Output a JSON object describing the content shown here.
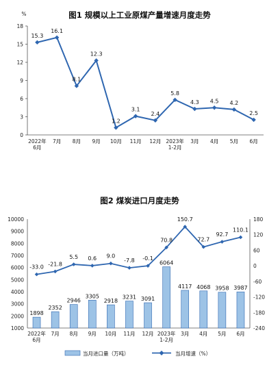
{
  "charts": [
    {
      "title": "图1  规模以上工业原煤产量增速月度走势",
      "unit_label": "%",
      "categories": [
        [
          "2022年",
          "6月"
        ],
        [
          "7月"
        ],
        [
          "8月"
        ],
        [
          "9月"
        ],
        [
          "10月"
        ],
        [
          "11月"
        ],
        [
          "12月"
        ],
        [
          "2023年",
          "1-2月"
        ],
        [
          "3月"
        ],
        [
          "4月"
        ],
        [
          "5月"
        ],
        [
          "6月"
        ]
      ],
      "y_ticks": [
        "0",
        "3",
        "6",
        "9",
        "12",
        "15",
        "18"
      ],
      "value_labels": [
        "15.3",
        "16.1",
        "8.1",
        "12.3",
        "1.2",
        "3.1",
        "2.4",
        "5.8",
        "4.3",
        "4.5",
        "4.2",
        "2.5"
      ]
    },
    {
      "title": "图2  煤炭进口月度走势",
      "categories": [
        [
          "2022年",
          "6月"
        ],
        [
          "7月"
        ],
        [
          "8月"
        ],
        [
          "9月"
        ],
        [
          "10月"
        ],
        [
          "11月"
        ],
        [
          "12月"
        ],
        [
          "2023年",
          "1-2月"
        ],
        [
          "3月"
        ],
        [
          "4月"
        ],
        [
          "5月"
        ],
        [
          "6月"
        ]
      ],
      "y_left_ticks": [
        "1000",
        "2000",
        "3000",
        "4000",
        "5000",
        "6000",
        "7000",
        "8000",
        "9000",
        "10000"
      ],
      "y_right_ticks": [
        "-240",
        "-180",
        "-120",
        "-60",
        "0",
        "60",
        "120",
        "180"
      ],
      "bar_labels": [
        "1898",
        "2352",
        "2946",
        "3305",
        "2918",
        "3231",
        "3091",
        "6064",
        "4117",
        "4068",
        "3958",
        "3987"
      ],
      "line_labels": [
        "-33.0",
        "-21.8",
        "5.5",
        "0.6",
        "9.0",
        "-7.8",
        "-0.1",
        "70.8",
        "150.7",
        "72.7",
        "92.7",
        "110.1"
      ],
      "legend": {
        "bar": "当月进口量（万吨）",
        "line": "当月增速（%）"
      }
    }
  ],
  "chart_data": [
    {
      "type": "line",
      "title": "图1  规模以上工业原煤产量增速月度走势",
      "ylabel": "%",
      "x": [
        "2022年6月",
        "7月",
        "8月",
        "9月",
        "10月",
        "11月",
        "12月",
        "2023年1-2月",
        "3月",
        "4月",
        "5月",
        "6月"
      ],
      "series": [
        {
          "values": [
            15.3,
            16.1,
            8.1,
            12.3,
            1.2,
            3.1,
            2.4,
            5.8,
            4.3,
            4.5,
            4.2,
            2.5
          ],
          "color": "#2e66b0"
        }
      ],
      "ylim": [
        0,
        18
      ],
      "yticks": [
        0,
        3,
        6,
        9,
        12,
        15,
        18
      ],
      "grid": false
    },
    {
      "type": "bar+line",
      "title": "图2  煤炭进口月度走势",
      "x": [
        "2022年6月",
        "7月",
        "8月",
        "9月",
        "10月",
        "11月",
        "12月",
        "2023年1-2月",
        "3月",
        "4月",
        "5月",
        "6月"
      ],
      "series": [
        {
          "name": "当月进口量（万吨）",
          "type": "bar",
          "axis": "left",
          "color": "#9dc3e6",
          "values": [
            1898,
            2352,
            2946,
            3305,
            2918,
            3231,
            3091,
            6064,
            4117,
            4068,
            3958,
            3987
          ]
        },
        {
          "name": "当月增速（%）",
          "type": "line",
          "axis": "right",
          "color": "#2e66b0",
          "values": [
            -33.0,
            -21.8,
            5.5,
            0.6,
            9.0,
            -7.8,
            -0.1,
            70.8,
            150.7,
            72.7,
            92.7,
            110.1
          ]
        }
      ],
      "ylim_left": [
        1000,
        10000
      ],
      "ylim_right": [
        -240,
        180
      ],
      "legend_position": "bottom",
      "grid": false
    }
  ]
}
